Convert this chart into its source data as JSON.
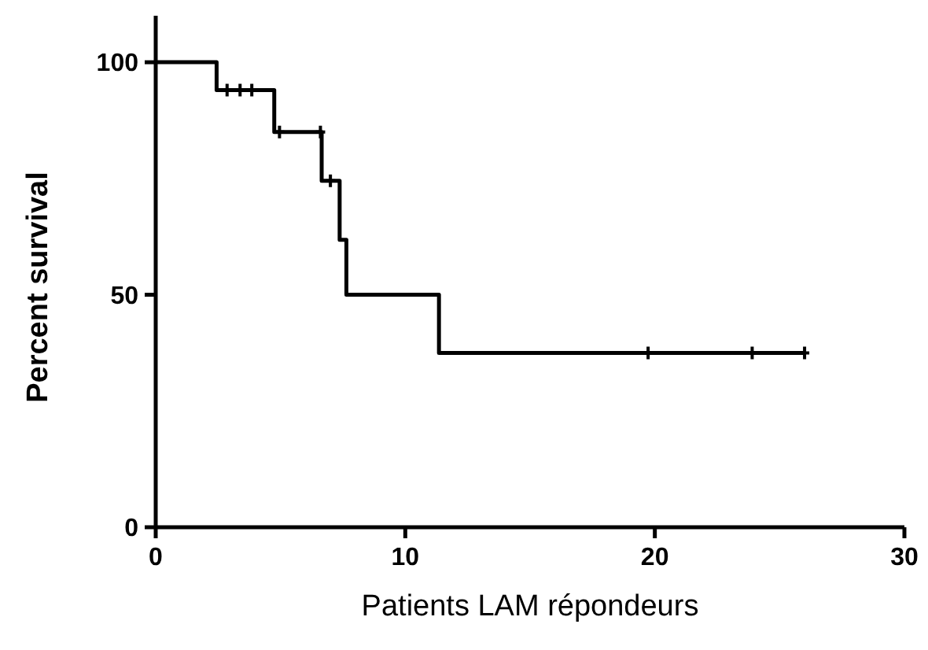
{
  "chart_data": {
    "type": "step",
    "xlabel": "Patients LAM répondeurs",
    "ylabel": "Percent survival",
    "xlim": [
      0,
      30
    ],
    "xticks": [
      0,
      10,
      20,
      30
    ],
    "ylim": [
      0,
      110
    ],
    "yticks": [
      0,
      50,
      100
    ],
    "grid": false,
    "series": [
      {
        "color": "#000000",
        "marker": "none",
        "x": [
          0,
          2.44,
          4.75,
          6.65,
          7.37,
          7.64,
          11.35,
          26
        ],
        "values": [
          100,
          94,
          85,
          74.5,
          61.8,
          50,
          37.5,
          37.5
        ]
      },
      {
        "type": "scatter",
        "color": "#000000",
        "marker": "cross",
        "x": [
          2.86,
          3.38,
          3.85,
          4.96,
          6.6,
          7.0,
          19.73,
          23.9,
          26.0
        ],
        "values": [
          94,
          94,
          94,
          85,
          85,
          74.5,
          37.5,
          37.5,
          37.5
        ]
      }
    ]
  }
}
